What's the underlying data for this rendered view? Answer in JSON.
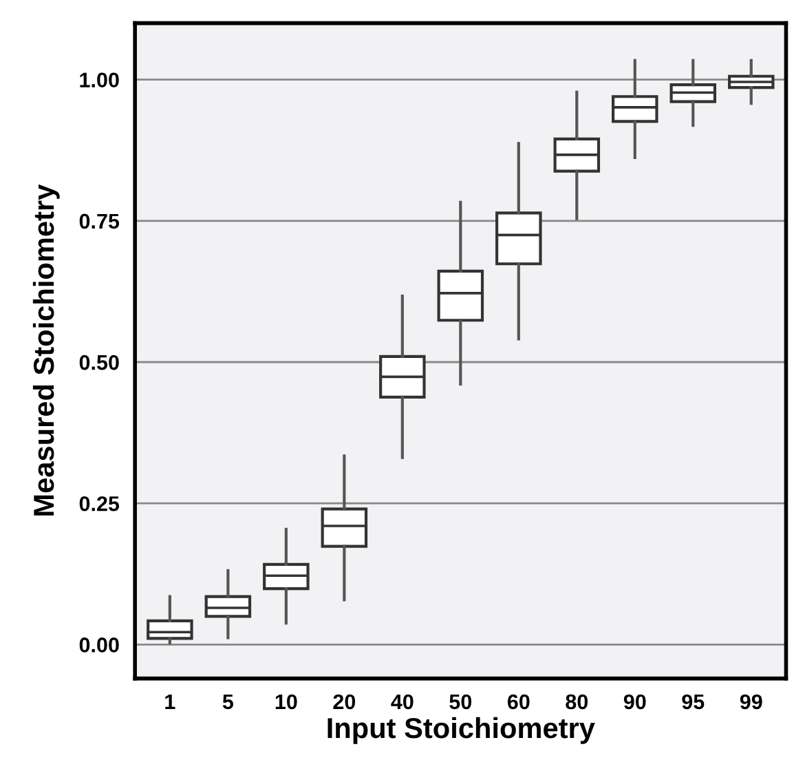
{
  "chart_data": {
    "type": "box",
    "xlabel": "Input Stoichiometry",
    "ylabel": "Measured Stoichiometry",
    "categories": [
      "1",
      "5",
      "10",
      "20",
      "40",
      "50",
      "60",
      "80",
      "90",
      "95",
      "99"
    ],
    "boxes": [
      {
        "low": 0.003,
        "q1": 0.011,
        "median": 0.022,
        "q3": 0.042,
        "high": 0.085
      },
      {
        "low": 0.012,
        "q1": 0.05,
        "median": 0.065,
        "q3": 0.085,
        "high": 0.131
      },
      {
        "low": 0.038,
        "q1": 0.099,
        "median": 0.122,
        "q3": 0.142,
        "high": 0.204
      },
      {
        "low": 0.079,
        "q1": 0.174,
        "median": 0.21,
        "q3": 0.24,
        "high": 0.334
      },
      {
        "low": 0.331,
        "q1": 0.438,
        "median": 0.474,
        "q3": 0.51,
        "high": 0.617
      },
      {
        "low": 0.461,
        "q1": 0.574,
        "median": 0.622,
        "q3": 0.661,
        "high": 0.783
      },
      {
        "low": 0.541,
        "q1": 0.674,
        "median": 0.725,
        "q3": 0.764,
        "high": 0.887
      },
      {
        "low": 0.754,
        "q1": 0.838,
        "median": 0.867,
        "q3": 0.895,
        "high": 0.978
      },
      {
        "low": 0.862,
        "q1": 0.926,
        "median": 0.951,
        "q3": 0.97,
        "high": 1.034
      },
      {
        "low": 0.919,
        "q1": 0.961,
        "median": 0.977,
        "q3": 0.991,
        "high": 1.034
      },
      {
        "low": 0.958,
        "q1": 0.986,
        "median": 0.996,
        "q3": 1.006,
        "high": 1.034
      }
    ],
    "ylim": [
      -0.06,
      1.1
    ],
    "yticks": [
      {
        "value": 0,
        "label": "0.00"
      },
      {
        "value": 0.25,
        "label": "0.25"
      },
      {
        "value": 0.5,
        "label": "0.50"
      },
      {
        "value": 0.75,
        "label": "0.75"
      },
      {
        "value": 1,
        "label": "1.00"
      }
    ],
    "grid": "y"
  }
}
